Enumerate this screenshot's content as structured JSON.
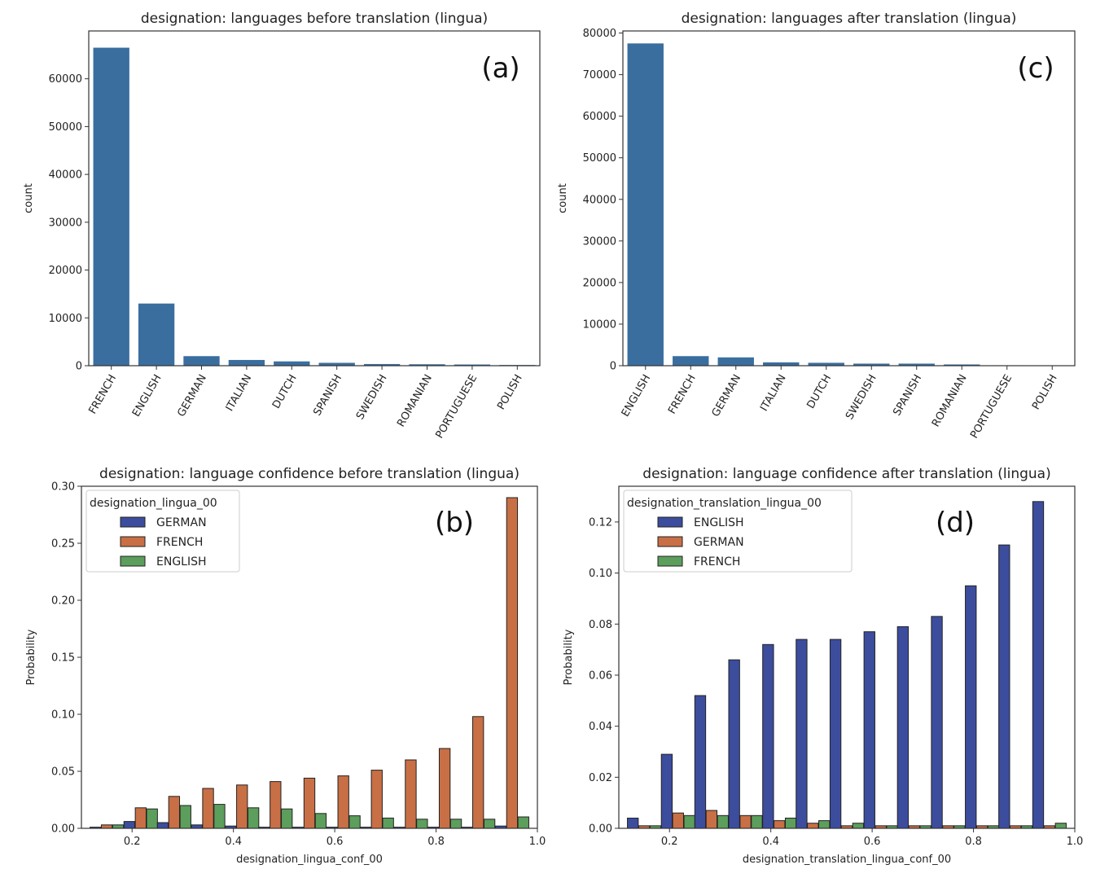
{
  "chart_data": [
    {
      "panel": "(a)",
      "type": "bar",
      "title": "designation: languages before translation (lingua)",
      "xlabel": "",
      "ylabel": "count",
      "categories": [
        "FRENCH",
        "ENGLISH",
        "GERMAN",
        "ITALIAN",
        "DUTCH",
        "SPANISH",
        "SWEDISH",
        "ROMANIAN",
        "PORTUGUESE",
        "POLISH"
      ],
      "values": [
        66500,
        13000,
        2000,
        1200,
        900,
        600,
        350,
        300,
        250,
        150
      ],
      "ylim": [
        0,
        70000
      ],
      "yticks": [
        0,
        10000,
        20000,
        30000,
        40000,
        50000,
        60000
      ],
      "color": "#3a6e9f",
      "grid": false
    },
    {
      "panel": "(c)",
      "type": "bar",
      "title": "designation: languages after translation (lingua)",
      "xlabel": "",
      "ylabel": "count",
      "categories": [
        "ENGLISH",
        "FRENCH",
        "GERMAN",
        "ITALIAN",
        "DUTCH",
        "SWEDISH",
        "SPANISH",
        "ROMANIAN",
        "PORTUGUESE",
        "POLISH"
      ],
      "values": [
        77500,
        2300,
        2000,
        800,
        700,
        500,
        500,
        300,
        100,
        80
      ],
      "ylim": [
        0,
        80500
      ],
      "yticks": [
        0,
        10000,
        20000,
        30000,
        40000,
        50000,
        60000,
        70000,
        80000
      ],
      "color": "#3a6e9f",
      "grid": false
    },
    {
      "panel": "(b)",
      "type": "bar",
      "title": "designation: language confidence before translation (lingua)",
      "xlabel": "designation_lingua_conf_00",
      "ylabel": "Probability",
      "legend_title": "designation_lingua_00",
      "legend_position": "top-left",
      "x": [
        0.15,
        0.217,
        0.283,
        0.35,
        0.417,
        0.483,
        0.55,
        0.617,
        0.683,
        0.75,
        0.817,
        0.883,
        0.95
      ],
      "xlim": [
        0.1,
        1.0
      ],
      "xticks": [
        0.2,
        0.4,
        0.6,
        0.8,
        1.0
      ],
      "ylim": [
        0,
        0.3
      ],
      "yticks": [
        0.0,
        0.05,
        0.1,
        0.15,
        0.2,
        0.25,
        0.3
      ],
      "series": [
        {
          "name": "GERMAN",
          "color": "#3c4d9e",
          "values": [
            0.001,
            0.006,
            0.005,
            0.003,
            0.002,
            0.001,
            0.001,
            0.001,
            0.001,
            0.001,
            0.001,
            0.001,
            0.002
          ]
        },
        {
          "name": "FRENCH",
          "color": "#c86f45",
          "values": [
            0.003,
            0.018,
            0.028,
            0.035,
            0.038,
            0.041,
            0.044,
            0.046,
            0.051,
            0.06,
            0.07,
            0.098,
            0.29
          ]
        },
        {
          "name": "ENGLISH",
          "color": "#5c9e5c",
          "values": [
            0.003,
            0.017,
            0.02,
            0.021,
            0.018,
            0.017,
            0.013,
            0.011,
            0.009,
            0.008,
            0.008,
            0.008,
            0.01
          ]
        }
      ],
      "grid": false
    },
    {
      "panel": "(d)",
      "type": "bar",
      "title": "designation: language confidence after translation (lingua)",
      "xlabel": "designation_translation_lingua_conf_00",
      "ylabel": "Probability",
      "legend_title": "designation_translation_lingua_00",
      "legend_position": "top-left",
      "x": [
        0.15,
        0.217,
        0.283,
        0.35,
        0.417,
        0.483,
        0.55,
        0.617,
        0.683,
        0.75,
        0.817,
        0.883,
        0.95
      ],
      "xlim": [
        0.1,
        1.0
      ],
      "xticks": [
        0.2,
        0.4,
        0.6,
        0.8,
        1.0
      ],
      "ylim": [
        0,
        0.134
      ],
      "yticks": [
        0.0,
        0.02,
        0.04,
        0.06,
        0.08,
        0.1,
        0.12
      ],
      "series": [
        {
          "name": "ENGLISH",
          "color": "#3c4d9e",
          "values": [
            0.004,
            0.029,
            0.052,
            0.066,
            0.072,
            0.074,
            0.074,
            0.077,
            0.079,
            0.083,
            0.095,
            0.111,
            0.128
          ]
        },
        {
          "name": "GERMAN",
          "color": "#c86f45",
          "values": [
            0.001,
            0.006,
            0.007,
            0.005,
            0.003,
            0.002,
            0.001,
            0.001,
            0.001,
            0.001,
            0.001,
            0.001,
            0.001
          ]
        },
        {
          "name": "FRENCH",
          "color": "#5c9e5c",
          "values": [
            0.001,
            0.005,
            0.005,
            0.005,
            0.004,
            0.003,
            0.002,
            0.001,
            0.001,
            0.001,
            0.001,
            0.001,
            0.002
          ]
        }
      ],
      "grid": false
    }
  ]
}
